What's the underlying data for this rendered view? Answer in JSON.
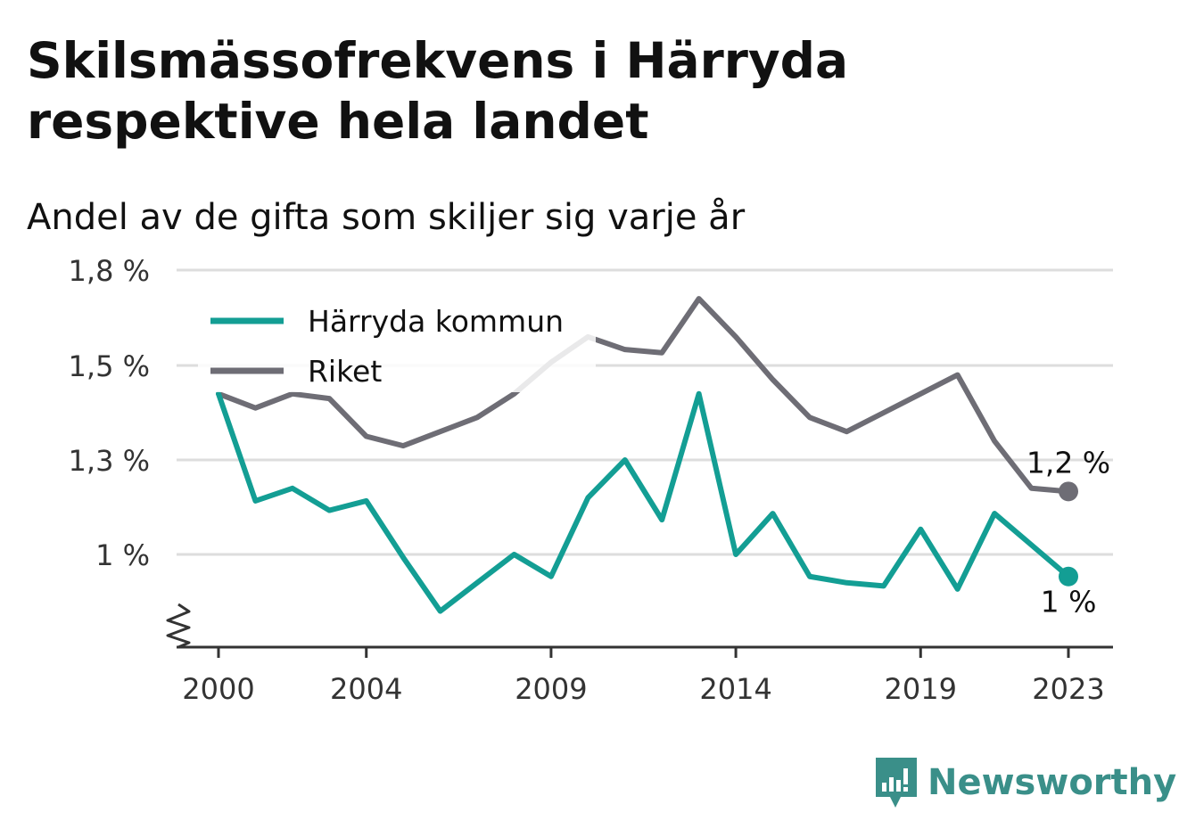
{
  "title": "Skilsmässofrekvens i Härryda respektive hela landet",
  "subtitle": "Andel av de gifta som skiljer sig varje år",
  "brand": {
    "name": "Newsworthy",
    "color": "#3a8f89",
    "icon": "bar-chart-speech-bubble-icon"
  },
  "chart_data": {
    "type": "line",
    "title": "Skilsmässofrekvens i Härryda respektive hela landet",
    "subtitle": "Andel av de gifta som skiljer sig varje år",
    "x": [
      2000,
      2001,
      2002,
      2003,
      2004,
      2005,
      2006,
      2007,
      2008,
      2009,
      2010,
      2011,
      2012,
      2013,
      2014,
      2015,
      2016,
      2017,
      2018,
      2019,
      2020,
      2021,
      2022,
      2023
    ],
    "x_ticks": [
      "2000",
      "2004",
      "2009",
      "2014",
      "2019",
      "2023"
    ],
    "y_ticks": [
      {
        "value": 1.8,
        "label": "1,8 %"
      },
      {
        "value": 1.5,
        "label": "1,5 %"
      },
      {
        "value": 1.3,
        "label": "1,3 %"
      },
      {
        "value": 1.0,
        "label": "1 %"
      }
    ],
    "ylim": [
      0.7,
      1.8
    ],
    "y_axis_break": true,
    "grid": true,
    "legend_position": "top-left",
    "series": [
      {
        "name": "Härryda kommun",
        "color": "#139e94",
        "values": [
          1.44,
          1.17,
          1.21,
          1.14,
          1.17,
          0.99,
          0.82,
          0.91,
          1.0,
          0.93,
          1.18,
          1.3,
          1.11,
          1.44,
          1.0,
          1.13,
          0.93,
          0.91,
          0.9,
          1.08,
          0.89,
          1.13,
          1.03,
          0.93
        ],
        "end_label": "1 %"
      },
      {
        "name": "Riket",
        "color": "#6e6d75",
        "values": [
          1.44,
          1.41,
          1.44,
          1.43,
          1.35,
          1.33,
          1.36,
          1.39,
          1.44,
          1.51,
          1.59,
          1.55,
          1.54,
          1.71,
          1.59,
          1.47,
          1.39,
          1.36,
          1.4,
          1.44,
          1.48,
          1.34,
          1.21,
          1.2
        ],
        "end_label": "1,2 %"
      }
    ]
  }
}
